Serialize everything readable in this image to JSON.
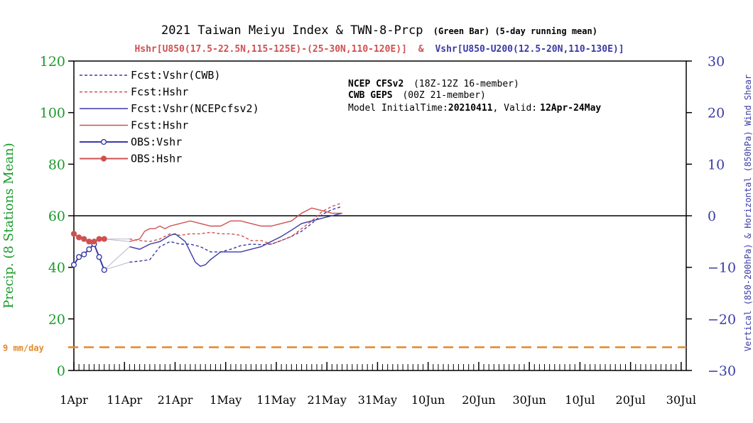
{
  "chart_data": {
    "type": "line",
    "title": "2021 Taiwan Meiyu Index & TWN-8-Prcp",
    "title_suffix": "(Green Bar) (5-day running mean)",
    "subtitle_red": "Hshr[U850(17.5-22.5N,115-125E)-(25-30N,110-120E)]",
    "subtitle_amp": "&",
    "subtitle_blue": "Vshr[U850-U200(12.5-20N,110-130E)]",
    "ylabel_left": "Precip. (8 Stations Mean)",
    "ylabel_right": "Vertical (850-200hPa) & Horizontal (850hPa) Wind Shear",
    "ylim_left": [
      0,
      120
    ],
    "ylim_right": [
      -30,
      30
    ],
    "yticks_left": [
      0,
      20,
      40,
      60,
      80,
      100,
      120
    ],
    "yticks_right": [
      -30,
      -20,
      -10,
      0,
      10,
      20,
      30
    ],
    "x_range_days": [
      0,
      121
    ],
    "x_tick_labels": [
      "1Apr",
      "11Apr",
      "21Apr",
      "1May",
      "11May",
      "21May",
      "31May",
      "10Jun",
      "20Jun",
      "30Jun",
      "10Jul",
      "20Jul",
      "30Jul"
    ],
    "x_tick_days": [
      0,
      10,
      20,
      30,
      40,
      50,
      60,
      70,
      80,
      90,
      100,
      110,
      120
    ],
    "reference_line": {
      "label": "9 mm/day",
      "value": 9,
      "color": "#e08a2a"
    },
    "zero_line_right": 0,
    "annotation": {
      "line1_bold": "NCEP CFSv2",
      "line1_rest": "(18Z-12Z 16-member)",
      "line2_bold": "CWB GEPS",
      "line2_rest": "(00Z 21-member)",
      "line3_prefix": "Model InitialTime:",
      "line3_init": "20210411",
      "line3_mid": ", Valid:",
      "line3_valid": "12Apr-24May"
    },
    "legend_position": "top-left",
    "series": [
      {
        "name": "Fcst:Vshr(CWB)",
        "axis": "right",
        "color": "#3a3aa8",
        "style": "dashed",
        "marker": "none",
        "x": [
          11,
          13,
          15,
          17,
          19,
          21,
          23,
          25,
          27,
          29,
          31,
          33,
          35,
          37,
          39,
          41,
          43,
          45,
          47,
          49,
          51,
          53
        ],
        "y": [
          -9,
          -8.8,
          -8.5,
          -6,
          -5,
          -5.5,
          -5.5,
          -6,
          -7,
          -7,
          -6.5,
          -5.8,
          -5.5,
          -5.6,
          -5.5,
          -4.8,
          -4,
          -3,
          -1.5,
          0.2,
          1.2,
          1.8
        ]
      },
      {
        "name": "Fcst:Hshr",
        "axis": "right",
        "color": "#d05050",
        "style": "dashed",
        "marker": "none",
        "x": [
          11,
          13,
          15,
          17,
          19,
          21,
          23,
          25,
          27,
          29,
          31,
          33,
          35,
          37,
          39,
          41,
          43,
          45,
          47,
          49,
          51,
          53
        ],
        "y": [
          -4.5,
          -4.8,
          -5,
          -4.5,
          -3.5,
          -3.8,
          -3.5,
          -3.5,
          -3.2,
          -3.5,
          -3.5,
          -3.8,
          -4.8,
          -4.8,
          -5.5,
          -4.8,
          -4,
          -2.5,
          -1,
          0.8,
          1.8,
          2.5
        ]
      },
      {
        "name": "Fcst:Vshr(NCEPcfsv2)",
        "axis": "right",
        "color": "#3a3aa8",
        "style": "solid",
        "marker": "none",
        "x": [
          11,
          13,
          15,
          17,
          19,
          20,
          22,
          24,
          25,
          26,
          27,
          29,
          31,
          33,
          35,
          37,
          39,
          41,
          43,
          45,
          47,
          49,
          51,
          53
        ],
        "y": [
          -6,
          -6.5,
          -5.5,
          -5,
          -3.8,
          -3.5,
          -5,
          -9,
          -9.8,
          -9.5,
          -8.5,
          -7,
          -7,
          -7,
          -6.5,
          -6,
          -5,
          -4,
          -2.8,
          -1.5,
          -1,
          -0.5,
          0,
          0.5
        ]
      },
      {
        "name": "Fcst:Hshr",
        "axis": "right",
        "color": "#d05050",
        "style": "solid",
        "marker": "none",
        "x": [
          11,
          13,
          14,
          15,
          16,
          17,
          18,
          19,
          21,
          23,
          25,
          27,
          29,
          31,
          33,
          35,
          37,
          39,
          41,
          43,
          45,
          47,
          49,
          51,
          53
        ],
        "y": [
          -5,
          -4.5,
          -3,
          -2.5,
          -2.5,
          -2,
          -2.5,
          -2,
          -1.5,
          -1,
          -1.5,
          -2,
          -2,
          -1,
          -1,
          -1.5,
          -2,
          -2,
          -1.5,
          -1,
          0.5,
          1.5,
          1,
          0.5,
          0.5
        ]
      },
      {
        "name": "OBS:Vshr",
        "axis": "right",
        "color": "#3a3aa8",
        "style": "solid",
        "marker": "open-circle",
        "x": [
          0,
          1,
          2,
          3,
          4,
          5,
          6
        ],
        "y": [
          -9.5,
          -8,
          -7.5,
          -6.5,
          -5.5,
          -8,
          -10.5
        ]
      },
      {
        "name": "OBS:Hshr",
        "axis": "right",
        "color": "#d05050",
        "style": "solid",
        "marker": "filled-circle",
        "x": [
          0,
          1,
          2,
          3,
          4,
          5,
          6
        ],
        "y": [
          -3.5,
          -4.2,
          -4.5,
          -5,
          -5,
          -4.5,
          -4.5
        ]
      }
    ]
  }
}
